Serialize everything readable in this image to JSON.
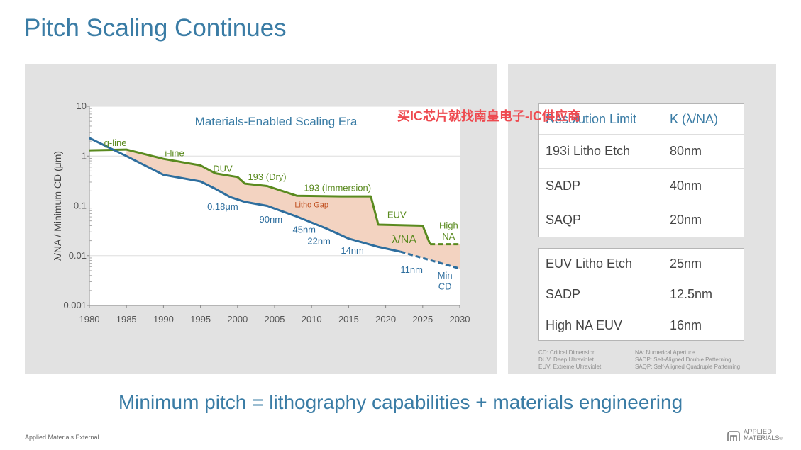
{
  "slide": {
    "title": "Pitch Scaling Continues",
    "tagline": "Minimum pitch = lithography capabilities + materials engineering",
    "footer": "Applied Materials External",
    "logo": {
      "line1": "APPLIED",
      "line2": "MATERIALS",
      "mark": "®",
      "icon": "applied-materials-logo-icon"
    },
    "watermark": "买IC芯片就找南皇电子-IC供应商"
  },
  "chart_data": {
    "type": "line",
    "title": "Materials-Enabled Scaling Era",
    "xlabel": "",
    "ylabel": "λ/NA / Minimum CD (μm)",
    "xlim": [
      1980,
      2030
    ],
    "ylim": [
      0.001,
      10
    ],
    "yscale": "log",
    "x_ticks": [
      "1980",
      "1985",
      "1990",
      "1995",
      "2000",
      "2005",
      "2010",
      "2015",
      "2020",
      "2025",
      "2030"
    ],
    "y_ticks": [
      "10",
      "1",
      "0.1",
      "0.01",
      "0.001"
    ],
    "grid": "horizontal",
    "series": [
      {
        "name": "λ/NA",
        "color": "#5a8a1f",
        "points": [
          [
            1980,
            1.3
          ],
          [
            1985,
            1.35
          ],
          [
            1990,
            0.88
          ],
          [
            1995,
            0.65
          ],
          [
            1997,
            0.45
          ],
          [
            2000,
            0.38
          ],
          [
            2001,
            0.28
          ],
          [
            2004,
            0.25
          ],
          [
            2008,
            0.16
          ],
          [
            2014,
            0.155
          ],
          [
            2018,
            0.155
          ],
          [
            2019,
            0.042
          ],
          [
            2025,
            0.04
          ],
          [
            2026,
            0.017
          ]
        ],
        "projected_points": [
          [
            2026,
            0.017
          ],
          [
            2030,
            0.017
          ]
        ]
      },
      {
        "name": "Min CD",
        "color": "#2e6e9e",
        "points": [
          [
            1980,
            2.3
          ],
          [
            1985,
            1.0
          ],
          [
            1990,
            0.42
          ],
          [
            1995,
            0.31
          ],
          [
            1997,
            0.22
          ],
          [
            1999,
            0.15
          ],
          [
            2001,
            0.12
          ],
          [
            2004,
            0.1
          ],
          [
            2008,
            0.061
          ],
          [
            2012,
            0.035
          ],
          [
            2015,
            0.022
          ],
          [
            2019,
            0.015
          ],
          [
            2022,
            0.012
          ]
        ],
        "projected_points": [
          [
            2022,
            0.012
          ],
          [
            2030,
            0.0055
          ]
        ]
      }
    ],
    "shaded_region": {
      "label": "Litho Gap",
      "color": "#f3d3c1"
    },
    "annotations": {
      "green": [
        {
          "text": "g-line",
          "x": 1983.5,
          "y": 1.6
        },
        {
          "text": "i-line",
          "x": 1991.5,
          "y": 1.0
        },
        {
          "text": "DUV",
          "x": 1998,
          "y": 0.48
        },
        {
          "text": "193 (Dry)",
          "x": 2004,
          "y": 0.33
        },
        {
          "text": "193 (Immersion)",
          "x": 2013.5,
          "y": 0.2
        },
        {
          "text": "EUV",
          "x": 2021.5,
          "y": 0.057
        },
        {
          "text": "High",
          "x": 2028.5,
          "y": 0.035
        },
        {
          "text": "NA",
          "x": 2028.5,
          "y": 0.021
        },
        {
          "text": "λ/NA",
          "x": 2022.5,
          "y": 0.018
        }
      ],
      "blue": [
        {
          "text": "0.18μm",
          "x": 1998,
          "y": 0.084
        },
        {
          "text": "90nm",
          "x": 2004.5,
          "y": 0.046
        },
        {
          "text": "45nm",
          "x": 2009,
          "y": 0.029
        },
        {
          "text": "22nm",
          "x": 2011,
          "y": 0.017
        },
        {
          "text": "14nm",
          "x": 2015.5,
          "y": 0.011
        },
        {
          "text": "11nm",
          "x": 2023.5,
          "y": 0.0045
        },
        {
          "text": "Min",
          "x": 2028,
          "y": 0.0035
        },
        {
          "text": "CD",
          "x": 2028,
          "y": 0.0021
        }
      ],
      "gap": [
        {
          "text": "Litho Gap",
          "x": 2010,
          "y": 0.093
        }
      ]
    }
  },
  "resolution_table": {
    "header": {
      "col1": "Resolution Limit",
      "col2": "K (λ/NA)"
    },
    "rows": [
      {
        "method": "193i Litho Etch",
        "value": "80nm"
      },
      {
        "method": "SADP",
        "value": "40nm"
      },
      {
        "method": "SAQP",
        "value": "20nm"
      }
    ]
  },
  "euv_table": {
    "rows": [
      {
        "method": "EUV Litho Etch",
        "value": "25nm"
      },
      {
        "method": "SADP",
        "value": "12.5nm"
      },
      {
        "method": "High NA EUV",
        "value": "16nm"
      }
    ]
  },
  "glossary": {
    "left": [
      "CD: Critical Dimension",
      "DUV: Deep Ultraviolet",
      "EUV: Extreme Ultraviolet"
    ],
    "right": [
      "NA: Numerical Aperture",
      "SADP: Self-Aligned Double Patterning",
      "SAQP: Self-Aligned Quadruple Patterning"
    ]
  }
}
